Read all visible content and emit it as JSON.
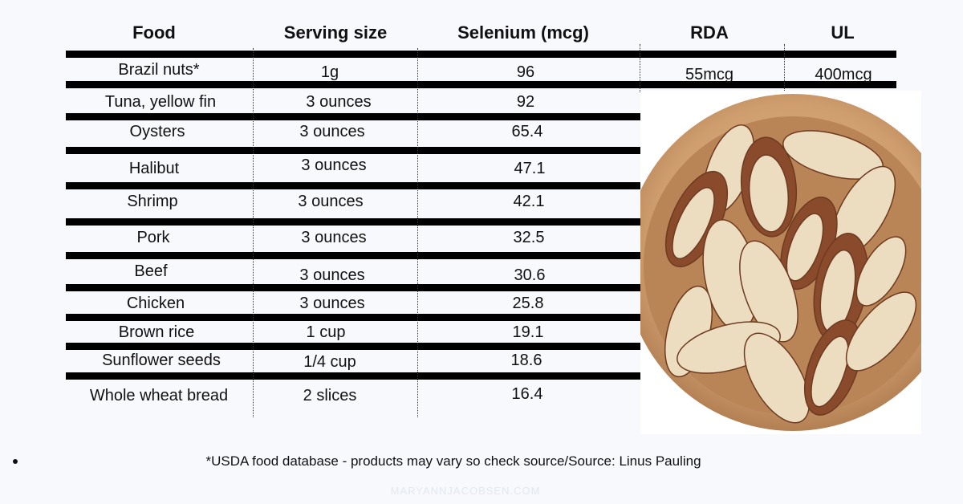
{
  "headers": {
    "food": "Food",
    "serving": "Serving size",
    "selenium": "Selenium (mcg)",
    "rda": "RDA",
    "ul": "UL"
  },
  "rows": [
    {
      "food": "Brazil nuts*",
      "serving": "1g",
      "selenium": "96",
      "rda": "55mcg",
      "ul": "400mcg"
    },
    {
      "food": "Tuna, yellow fin",
      "serving": "3 ounces",
      "selenium": "92"
    },
    {
      "food": "Oysters",
      "serving": "3 ounces",
      "selenium": "65.4"
    },
    {
      "food": "Halibut",
      "serving": "3 ounces",
      "selenium": "47.1"
    },
    {
      "food": "Shrimp",
      "serving": "3 ounces",
      "selenium": "42.1"
    },
    {
      "food": "Pork",
      "serving": "3 ounces",
      "selenium": "32.5"
    },
    {
      "food": "Beef",
      "serving": "3 ounces",
      "selenium": "30.6"
    },
    {
      "food": "Chicken",
      "serving": "3 ounces",
      "selenium": "25.8"
    },
    {
      "food": "Brown rice",
      "serving": "1 cup",
      "selenium": "19.1"
    },
    {
      "food": "Sunflower seeds",
      "serving": "1/4 cup",
      "selenium": "18.6"
    },
    {
      "food": "Whole wheat bread",
      "serving": "2 slices",
      "selenium": "16.4"
    }
  ],
  "footnote": "*USDA food database - products may vary so check source/Source: Linus Pauling",
  "watermark": "MARYANNJACOBSEN.COM",
  "image": {
    "icon": "brazil-nuts-bowl-photo"
  },
  "colors": {
    "background": "#f7f9fd",
    "rule": "#000000",
    "bowl": "#c99a6c",
    "nut": "#ecdcc0",
    "skin": "#8a4a2c"
  }
}
